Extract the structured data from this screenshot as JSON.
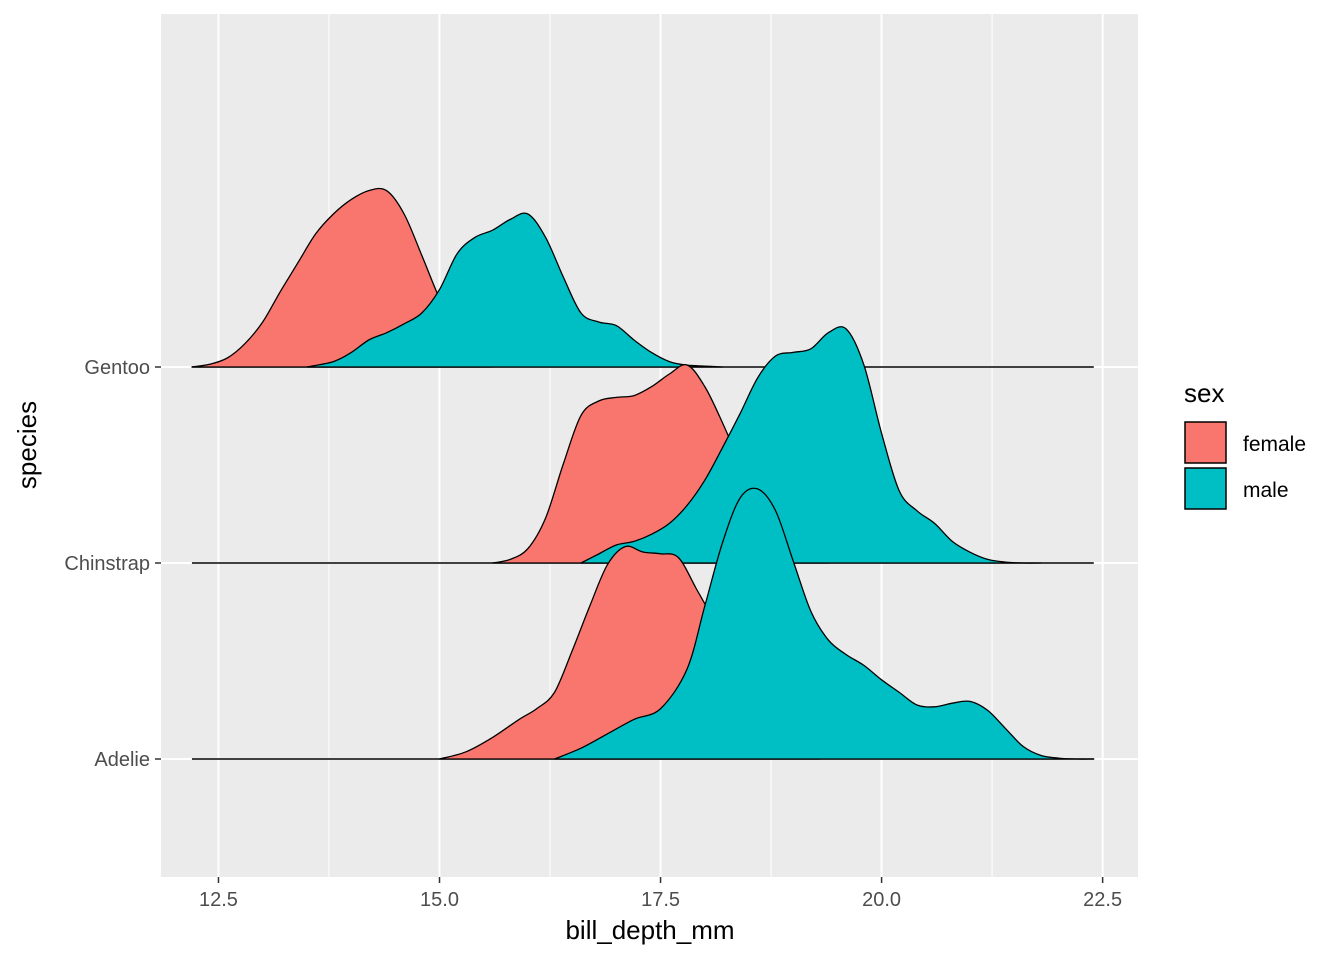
{
  "chart_data": {
    "type": "ridgeline",
    "xlabel": "bill_depth_mm",
    "ylabel": "species",
    "xlim": [
      11.85,
      22.9
    ],
    "x_ticks": [
      12.5,
      15.0,
      17.5,
      20.0,
      22.5
    ],
    "x_tick_labels": [
      "12.5",
      "15.0",
      "17.5",
      "20.0",
      "22.5"
    ],
    "categories": [
      "Adelie",
      "Chinstrap",
      "Gentoo"
    ],
    "line_range": [
      12.2,
      22.4
    ],
    "legend": {
      "title": "sex",
      "position": "right",
      "entries": [
        {
          "label": "female",
          "color": "#F8766D"
        },
        {
          "label": "male",
          "color": "#00BFC4"
        }
      ]
    },
    "background": "#EBEBEB",
    "grid": true,
    "series": [
      {
        "species": "Gentoo",
        "sex": "female",
        "color": "#F8766D",
        "x": [
          12.2,
          12.4,
          12.6,
          12.8,
          13.0,
          13.2,
          13.4,
          13.6,
          13.8,
          14.0,
          14.2,
          14.4,
          14.6,
          14.8,
          15.0,
          15.2,
          15.4,
          15.6
        ],
        "density": [
          0.0,
          0.015,
          0.05,
          0.13,
          0.25,
          0.42,
          0.58,
          0.74,
          0.85,
          0.93,
          0.98,
          0.98,
          0.85,
          0.62,
          0.38,
          0.18,
          0.05,
          0.0
        ]
      },
      {
        "species": "Gentoo",
        "sex": "male",
        "color": "#00BFC4",
        "x": [
          13.5,
          13.8,
          14.0,
          14.2,
          14.4,
          14.6,
          14.8,
          15.0,
          15.2,
          15.4,
          15.6,
          15.8,
          16.0,
          16.2,
          16.4,
          16.6,
          16.8,
          17.0,
          17.2,
          17.4,
          17.6,
          17.8,
          18.0,
          18.2
        ],
        "density": [
          0.0,
          0.03,
          0.08,
          0.15,
          0.19,
          0.24,
          0.3,
          0.43,
          0.63,
          0.72,
          0.76,
          0.82,
          0.85,
          0.72,
          0.5,
          0.3,
          0.25,
          0.23,
          0.15,
          0.08,
          0.03,
          0.01,
          0.005,
          0.0
        ]
      },
      {
        "species": "Chinstrap",
        "sex": "female",
        "color": "#F8766D",
        "x": [
          15.6,
          15.8,
          16.0,
          16.2,
          16.4,
          16.6,
          16.8,
          17.0,
          17.2,
          17.4,
          17.6,
          17.8,
          18.0,
          18.2,
          18.4,
          18.6,
          18.8,
          19.0,
          19.2,
          19.4
        ],
        "density": [
          0.0,
          0.02,
          0.08,
          0.25,
          0.55,
          0.82,
          0.9,
          0.92,
          0.93,
          0.98,
          1.05,
          1.1,
          0.98,
          0.78,
          0.55,
          0.3,
          0.15,
          0.08,
          0.03,
          0.0
        ]
      },
      {
        "species": "Chinstrap",
        "sex": "male",
        "color": "#00BFC4",
        "x": [
          16.6,
          16.8,
          17.0,
          17.2,
          17.4,
          17.6,
          17.8,
          18.0,
          18.2,
          18.4,
          18.6,
          18.8,
          19.0,
          19.2,
          19.4,
          19.6,
          19.8,
          20.0,
          20.2,
          20.4,
          20.6,
          20.8,
          21.0,
          21.2,
          21.4,
          21.6,
          21.8
        ],
        "density": [
          0.0,
          0.05,
          0.1,
          0.12,
          0.16,
          0.22,
          0.32,
          0.46,
          0.64,
          0.83,
          1.03,
          1.15,
          1.17,
          1.19,
          1.28,
          1.3,
          1.1,
          0.72,
          0.4,
          0.29,
          0.22,
          0.12,
          0.06,
          0.02,
          0.005,
          0.0,
          0.0
        ]
      },
      {
        "species": "Adelie",
        "sex": "female",
        "color": "#F8766D",
        "x": [
          15.0,
          15.3,
          15.6,
          15.9,
          16.1,
          16.3,
          16.5,
          16.7,
          16.9,
          17.1,
          17.3,
          17.5,
          17.7,
          17.9,
          18.1,
          18.3,
          18.5,
          18.7,
          18.9,
          19.1,
          19.3
        ],
        "density": [
          0.0,
          0.04,
          0.12,
          0.22,
          0.28,
          0.37,
          0.6,
          0.85,
          1.08,
          1.18,
          1.15,
          1.14,
          1.12,
          0.95,
          0.76,
          0.45,
          0.2,
          0.08,
          0.03,
          0.01,
          0.0
        ]
      },
      {
        "species": "Adelie",
        "sex": "male",
        "color": "#00BFC4",
        "x": [
          16.3,
          16.6,
          16.9,
          17.2,
          17.5,
          17.8,
          18.0,
          18.2,
          18.4,
          18.6,
          18.8,
          19.0,
          19.2,
          19.4,
          19.6,
          19.8,
          20.0,
          20.2,
          20.4,
          20.6,
          20.8,
          21.0,
          21.2,
          21.4,
          21.6,
          21.8,
          22.0,
          22.2,
          22.4
        ],
        "density": [
          0.0,
          0.06,
          0.14,
          0.22,
          0.28,
          0.5,
          0.85,
          1.2,
          1.45,
          1.5,
          1.38,
          1.1,
          0.82,
          0.66,
          0.58,
          0.52,
          0.44,
          0.37,
          0.3,
          0.29,
          0.31,
          0.32,
          0.27,
          0.17,
          0.07,
          0.02,
          0.005,
          0.0,
          0.0
        ]
      }
    ]
  }
}
